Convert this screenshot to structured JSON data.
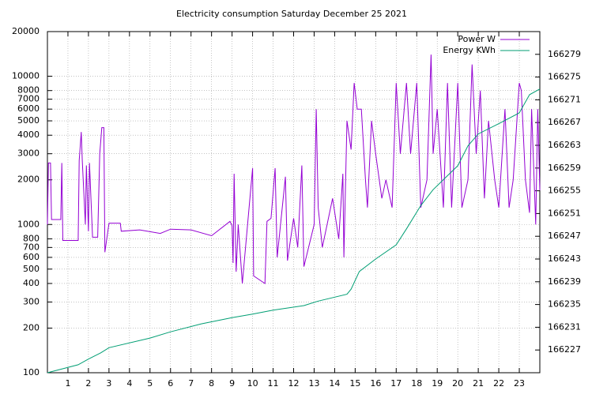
{
  "chart_data": {
    "type": "line",
    "title": "Electricity consumption Saturday December 25 2021",
    "xlim": [
      0,
      24
    ],
    "xticks": [
      1,
      2,
      3,
      4,
      5,
      6,
      7,
      8,
      9,
      10,
      11,
      12,
      13,
      14,
      15,
      16,
      17,
      18,
      19,
      20,
      21,
      22,
      23
    ],
    "ylim": [
      100,
      20000
    ],
    "yscale": "log",
    "yticks": [
      100,
      200,
      300,
      400,
      500,
      600,
      700,
      800,
      1000,
      2000,
      3000,
      4000,
      5000,
      6000,
      7000,
      8000,
      10000,
      20000
    ],
    "y2lim": [
      166223,
      166283
    ],
    "y2ticks": [
      166227,
      166231,
      166235,
      166239,
      166243,
      166247,
      166251,
      166255,
      166259,
      166263,
      166267,
      166271,
      166275,
      166279
    ],
    "grid": true,
    "legend": "top-right",
    "series": [
      {
        "name": "Power W",
        "color": "#9400d3",
        "x": [
          0,
          0.05,
          0.15,
          0.2,
          0.65,
          0.7,
          0.75,
          1.5,
          1.55,
          1.65,
          1.7,
          1.85,
          1.9,
          2.0,
          2.05,
          2.2,
          2.45,
          2.55,
          2.65,
          2.75,
          2.8,
          3.0,
          3.55,
          3.6,
          4.5,
          5.5,
          6.0,
          7.0,
          8.0,
          8.9,
          9.0,
          9.05,
          9.1,
          9.2,
          9.3,
          9.5,
          10.0,
          10.05,
          10.6,
          10.7,
          10.9,
          11.1,
          11.2,
          11.6,
          11.7,
          12.0,
          12.2,
          12.4,
          12.5,
          13.0,
          13.1,
          13.2,
          13.4,
          13.9,
          14.2,
          14.4,
          14.45,
          14.6,
          14.8,
          14.95,
          15.1,
          15.3,
          15.5,
          15.6,
          15.8,
          16.0,
          16.3,
          16.5,
          16.8,
          17.0,
          17.2,
          17.5,
          17.7,
          18.0,
          18.2,
          18.5,
          18.7,
          18.8,
          19.0,
          19.3,
          19.5,
          19.7,
          20.0,
          20.2,
          20.5,
          20.7,
          20.9,
          21.1,
          21.3,
          21.5,
          21.8,
          22.0,
          22.3,
          22.5,
          22.7,
          23.0,
          23.1,
          23.3,
          23.5,
          23.6,
          23.8,
          23.9,
          24.0
        ],
        "values": [
          1000,
          2600,
          2600,
          1080,
          1080,
          2600,
          780,
          780,
          2700,
          4200,
          2700,
          1000,
          2500,
          900,
          2600,
          820,
          820,
          3000,
          4500,
          4500,
          650,
          1020,
          1020,
          900,
          920,
          870,
          930,
          920,
          840,
          1050,
          980,
          550,
          2200,
          480,
          1000,
          400,
          2400,
          450,
          400,
          1050,
          1100,
          2400,
          600,
          2100,
          570,
          1100,
          700,
          2500,
          520,
          1000,
          6000,
          1300,
          700,
          1500,
          800,
          2200,
          600,
          5000,
          3200,
          9000,
          6000,
          6000,
          2000,
          1300,
          5000,
          3000,
          1500,
          2000,
          1300,
          9000,
          3000,
          9000,
          3000,
          9000,
          1300,
          2000,
          14000,
          3000,
          6000,
          1300,
          9000,
          1300,
          9000,
          1300,
          2000,
          12000,
          3000,
          8000,
          1500,
          5000,
          2000,
          1300,
          6000,
          1300,
          2000,
          9000,
          8000,
          2000,
          1200,
          6000,
          1000,
          6000,
          1700
        ]
      },
      {
        "name": "Energy KWh",
        "color": "#009e73",
        "axis": "y2",
        "x": [
          0,
          1.5,
          2,
          2.6,
          3,
          5,
          6,
          7.5,
          9,
          10,
          11,
          12.5,
          13.2,
          14.6,
          14.8,
          15.2,
          16,
          17,
          17.5,
          18.2,
          18.8,
          19.4,
          20,
          20.5,
          21,
          22,
          23,
          23.5,
          24
        ],
        "values": [
          166223,
          166224.4,
          166225.4,
          166226.5,
          166227.4,
          166229.1,
          166230.2,
          166231.6,
          166232.7,
          166233.3,
          166234,
          166234.8,
          166235.6,
          166236.8,
          166237.7,
          166240.8,
          166243,
          166245.5,
          166248.3,
          166252.4,
          166255.2,
          166257.3,
          166259.4,
          166262.9,
          166265,
          166266.8,
          166268.7,
          166271.9,
          166272.9
        ]
      }
    ]
  }
}
